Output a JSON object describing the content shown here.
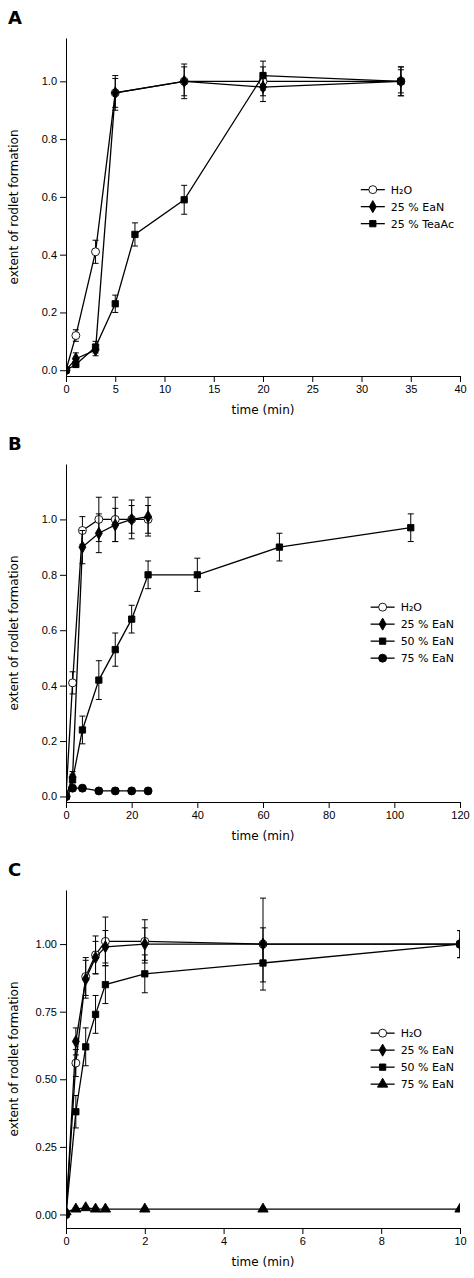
{
  "chart_data": [
    {
      "type": "line",
      "title": "A",
      "xlabel": "time (min)",
      "ylabel": "extent of rodlet formation",
      "xlim": [
        0,
        40
      ],
      "ylim": [
        -0.02,
        1.15
      ],
      "xticks": [
        0,
        5,
        10,
        15,
        20,
        25,
        30,
        35,
        40
      ],
      "yticks": [
        {
          "value": 0,
          "label": "0.0"
        },
        {
          "value": 0.2,
          "label": "0.2"
        },
        {
          "value": 0.4,
          "label": "0.4"
        },
        {
          "value": 0.6,
          "label": "0.6"
        },
        {
          "value": 0.8,
          "label": "0.8"
        },
        {
          "value": 1.0,
          "label": "1.0"
        }
      ],
      "grid": false,
      "legend": "center right",
      "series": [
        {
          "name": "H₂O",
          "marker": "circle",
          "color": "white",
          "x": [
            0,
            1,
            3,
            5,
            12,
            20,
            34
          ],
          "values": [
            0,
            0.12,
            0.41,
            0.96,
            1.0,
            1.0,
            1.0
          ],
          "yerr": [
            0.005,
            0.02,
            0.04,
            0.05,
            0.05,
            0.05,
            0.05
          ]
        },
        {
          "name": "25 % EaN",
          "marker": "diamond",
          "color": "black",
          "x": [
            0,
            1,
            3,
            5,
            12,
            20,
            34
          ],
          "values": [
            0,
            0.04,
            0.07,
            0.96,
            1.0,
            0.98,
            1.0
          ],
          "yerr": [
            0.005,
            0.02,
            0.02,
            0.06,
            0.06,
            0.05,
            0.05
          ]
        },
        {
          "name": "25 % TeaAc",
          "marker": "square",
          "color": "black",
          "x": [
            0,
            1,
            3,
            5,
            7,
            12,
            20,
            34
          ],
          "values": [
            0,
            0.02,
            0.08,
            0.23,
            0.47,
            0.59,
            1.02,
            1.0
          ],
          "yerr": [
            0.005,
            0.01,
            0.02,
            0.03,
            0.04,
            0.05,
            0.05,
            0.04
          ]
        }
      ]
    },
    {
      "type": "line",
      "title": "B",
      "xlabel": "time (min)",
      "ylabel": "extent of rodlet formation",
      "xlim": [
        0,
        120
      ],
      "ylim": [
        -0.02,
        1.2
      ],
      "xticks": [
        0,
        20,
        40,
        60,
        80,
        100,
        120
      ],
      "yticks": [
        {
          "value": 0,
          "label": "0.0"
        },
        {
          "value": 0.2,
          "label": "0.2"
        },
        {
          "value": 0.4,
          "label": "0.4"
        },
        {
          "value": 0.6,
          "label": "0.6"
        },
        {
          "value": 0.8,
          "label": "0.8"
        },
        {
          "value": 1.0,
          "label": "1.0"
        }
      ],
      "grid": false,
      "legend": "center right",
      "series": [
        {
          "name": "H₂O",
          "marker": "circle",
          "color": "white",
          "x": [
            0,
            2,
            5,
            10,
            15,
            20,
            25
          ],
          "values": [
            0,
            0.41,
            0.96,
            1.0,
            1.0,
            1.0,
            1.0
          ],
          "yerr": [
            0.005,
            0.04,
            0.05,
            0.08,
            0.08,
            0.05,
            0.05
          ]
        },
        {
          "name": "25 % EaN",
          "marker": "diamond",
          "color": "black",
          "x": [
            0,
            2,
            5,
            10,
            15,
            20,
            25
          ],
          "values": [
            0,
            0.07,
            0.9,
            0.95,
            0.98,
            1.0,
            1.01
          ],
          "yerr": [
            0.005,
            0.02,
            0.06,
            0.07,
            0.06,
            0.07,
            0.07
          ]
        },
        {
          "name": "50 % EaN",
          "marker": "square",
          "color": "black",
          "x": [
            0,
            2,
            5,
            10,
            15,
            20,
            25,
            40,
            65,
            105
          ],
          "values": [
            0,
            0.06,
            0.24,
            0.42,
            0.53,
            0.64,
            0.8,
            0.8,
            0.9,
            0.97
          ],
          "yerr": [
            0.005,
            0.02,
            0.05,
            0.07,
            0.06,
            0.05,
            0.05,
            0.06,
            0.05,
            0.05
          ]
        },
        {
          "name": "75 % EaN",
          "marker": "circle",
          "color": "black",
          "x": [
            0,
            2,
            5,
            10,
            15,
            20,
            25
          ],
          "values": [
            0,
            0.03,
            0.03,
            0.02,
            0.02,
            0.02,
            0.02
          ],
          "yerr": [
            0.005,
            0.01,
            0.01,
            0.01,
            0.01,
            0.01,
            0.01
          ]
        }
      ]
    },
    {
      "type": "line",
      "title": "C",
      "xlabel": "time (min)",
      "ylabel": "extent of rodlet formation",
      "xlim": [
        0,
        10
      ],
      "ylim": [
        -0.05,
        1.2
      ],
      "xticks": [
        0,
        2,
        4,
        6,
        8,
        10
      ],
      "yticks": [
        {
          "value": 0,
          "label": "0.00"
        },
        {
          "value": 0.25,
          "label": "0.25"
        },
        {
          "value": 0.5,
          "label": "0.50"
        },
        {
          "value": 0.75,
          "label": "0.75"
        },
        {
          "value": 1.0,
          "label": "1.00"
        }
      ],
      "grid": false,
      "legend": "center right",
      "series": [
        {
          "name": "H₂O",
          "marker": "circle",
          "color": "white",
          "x": [
            0,
            0.25,
            0.5,
            0.75,
            1.0,
            2.0,
            5.0,
            10.0
          ],
          "values": [
            0,
            0.56,
            0.88,
            0.96,
            1.01,
            1.01,
            1.0,
            1.0
          ],
          "yerr": [
            0.005,
            0.05,
            0.07,
            0.07,
            0.09,
            0.08,
            0.17,
            0.05
          ]
        },
        {
          "name": "25 % EaN",
          "marker": "diamond",
          "color": "black",
          "x": [
            0,
            0.25,
            0.5,
            0.75,
            1.0,
            2.0,
            5.0,
            10.0
          ],
          "values": [
            0,
            0.64,
            0.87,
            0.95,
            0.99,
            1.0,
            1.0,
            1.0
          ],
          "yerr": [
            0.005,
            0.05,
            0.07,
            0.06,
            0.06,
            0.06,
            0.06,
            0.05
          ]
        },
        {
          "name": "50 % EaN",
          "marker": "square",
          "color": "black",
          "x": [
            0,
            0.25,
            0.5,
            0.75,
            1.0,
            2.0,
            5.0,
            10.0
          ],
          "values": [
            0,
            0.38,
            0.62,
            0.74,
            0.85,
            0.89,
            0.93,
            1.0
          ],
          "yerr": [
            0.005,
            0.06,
            0.07,
            0.07,
            0.07,
            0.07,
            0.07,
            0.05
          ]
        },
        {
          "name": "75 % EaN",
          "marker": "triangle",
          "color": "black",
          "x": [
            0,
            0.25,
            0.5,
            0.75,
            1.0,
            2.0,
            5.0,
            10.0
          ],
          "values": [
            0.01,
            0.02,
            0.025,
            0.02,
            0.02,
            0.02,
            0.02,
            0.02
          ],
          "yerr": [
            0.005,
            0.005,
            0.005,
            0.005,
            0.005,
            0.005,
            0.005,
            0.005
          ]
        }
      ]
    }
  ]
}
